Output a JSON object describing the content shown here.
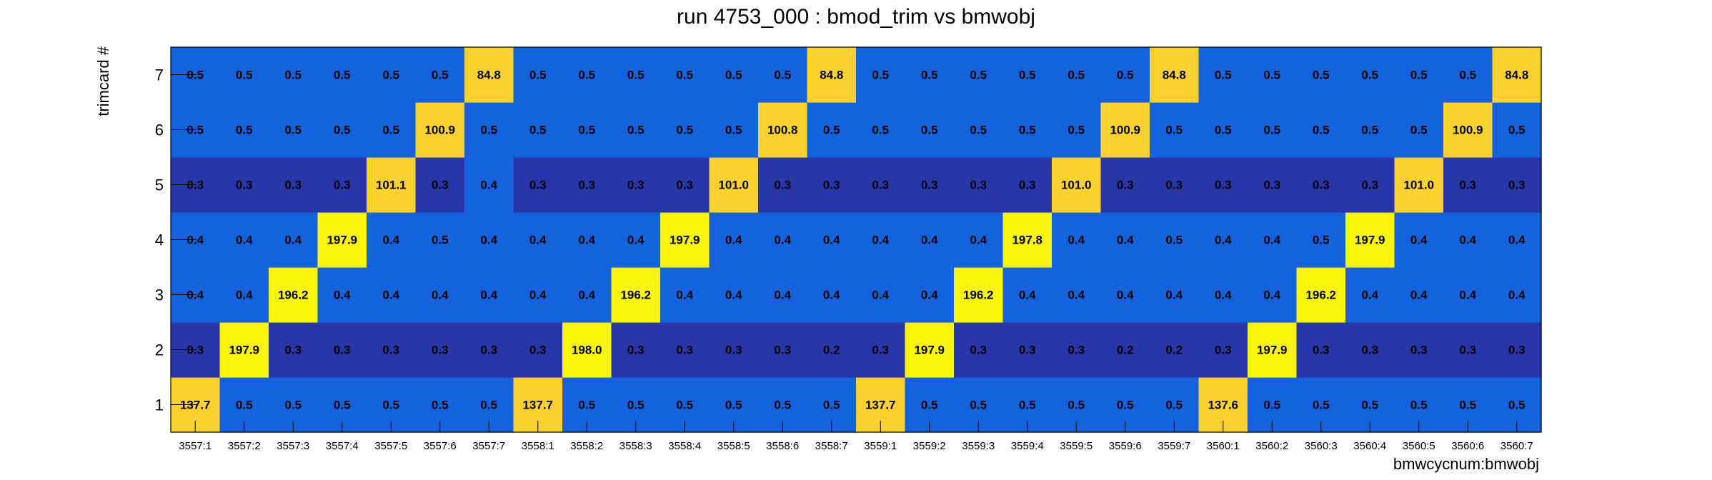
{
  "chart_data": {
    "type": "heatmap",
    "title": "run 4753_000 : bmod_trim vs bmwobj",
    "xlabel": "bmwcycnum:bmwobj",
    "ylabel": "trimcard #",
    "x_categories": [
      "3557:1",
      "3557:2",
      "3557:3",
      "3557:4",
      "3557:5",
      "3557:6",
      "3557:7",
      "3558:1",
      "3558:2",
      "3558:3",
      "3558:4",
      "3558:5",
      "3558:6",
      "3558:7",
      "3559:1",
      "3559:2",
      "3559:3",
      "3559:4",
      "3559:5",
      "3559:6",
      "3559:7",
      "3560:1",
      "3560:2",
      "3560:3",
      "3560:4",
      "3560:5",
      "3560:6",
      "3560:7"
    ],
    "y_categories": [
      "1",
      "2",
      "3",
      "4",
      "5",
      "6",
      "7"
    ],
    "values": [
      [
        "137.7",
        "0.5",
        "0.5",
        "0.5",
        "0.5",
        "0.5",
        "0.5",
        "137.7",
        "0.5",
        "0.5",
        "0.5",
        "0.5",
        "0.5",
        "0.5",
        "137.7",
        "0.5",
        "0.5",
        "0.5",
        "0.5",
        "0.5",
        "0.5",
        "137.6",
        "0.5",
        "0.5",
        "0.5",
        "0.5",
        "0.5",
        "0.5"
      ],
      [
        "0.3",
        "197.9",
        "0.3",
        "0.3",
        "0.3",
        "0.3",
        "0.3",
        "0.3",
        "198.0",
        "0.3",
        "0.3",
        "0.3",
        "0.3",
        "0.2",
        "0.3",
        "197.9",
        "0.3",
        "0.3",
        "0.3",
        "0.2",
        "0.2",
        "0.3",
        "197.9",
        "0.3",
        "0.3",
        "0.3",
        "0.3",
        "0.3"
      ],
      [
        "0.4",
        "0.4",
        "196.2",
        "0.4",
        "0.4",
        "0.4",
        "0.4",
        "0.4",
        "0.4",
        "196.2",
        "0.4",
        "0.4",
        "0.4",
        "0.4",
        "0.4",
        "0.4",
        "196.2",
        "0.4",
        "0.4",
        "0.4",
        "0.4",
        "0.4",
        "0.4",
        "196.2",
        "0.4",
        "0.4",
        "0.4",
        "0.4"
      ],
      [
        "0.4",
        "0.4",
        "0.4",
        "197.9",
        "0.4",
        "0.5",
        "0.4",
        "0.4",
        "0.4",
        "0.4",
        "197.9",
        "0.4",
        "0.4",
        "0.4",
        "0.4",
        "0.4",
        "0.4",
        "197.8",
        "0.4",
        "0.4",
        "0.5",
        "0.4",
        "0.4",
        "0.5",
        "197.9",
        "0.4",
        "0.4",
        "0.4"
      ],
      [
        "0.3",
        "0.3",
        "0.3",
        "0.3",
        "101.1",
        "0.3",
        "0.4",
        "0.3",
        "0.3",
        "0.3",
        "0.3",
        "101.0",
        "0.3",
        "0.3",
        "0.3",
        "0.3",
        "0.3",
        "0.3",
        "101.0",
        "0.3",
        "0.3",
        "0.3",
        "0.3",
        "0.3",
        "0.3",
        "101.0",
        "0.3",
        "0.3"
      ],
      [
        "0.5",
        "0.5",
        "0.5",
        "0.5",
        "0.5",
        "100.9",
        "0.5",
        "0.5",
        "0.5",
        "0.5",
        "0.5",
        "0.5",
        "100.8",
        "0.5",
        "0.5",
        "0.5",
        "0.5",
        "0.5",
        "0.5",
        "100.9",
        "0.5",
        "0.5",
        "0.5",
        "0.5",
        "0.5",
        "0.5",
        "100.9",
        "0.5"
      ],
      [
        "0.5",
        "0.5",
        "0.5",
        "0.5",
        "0.5",
        "0.5",
        "84.8",
        "0.5",
        "0.5",
        "0.5",
        "0.5",
        "0.5",
        "0.5",
        "84.8",
        "0.5",
        "0.5",
        "0.5",
        "0.5",
        "0.5",
        "0.5",
        "84.8",
        "0.5",
        "0.5",
        "0.5",
        "0.5",
        "0.5",
        "0.5",
        "84.8"
      ]
    ],
    "colors": {
      "peak_high": "#f8f40c",
      "peak_mid": "#fbd130",
      "background_high": "#1462dc",
      "background_low": "#2836a8",
      "axis": "#000000"
    },
    "grid": false,
    "legend": "none"
  }
}
